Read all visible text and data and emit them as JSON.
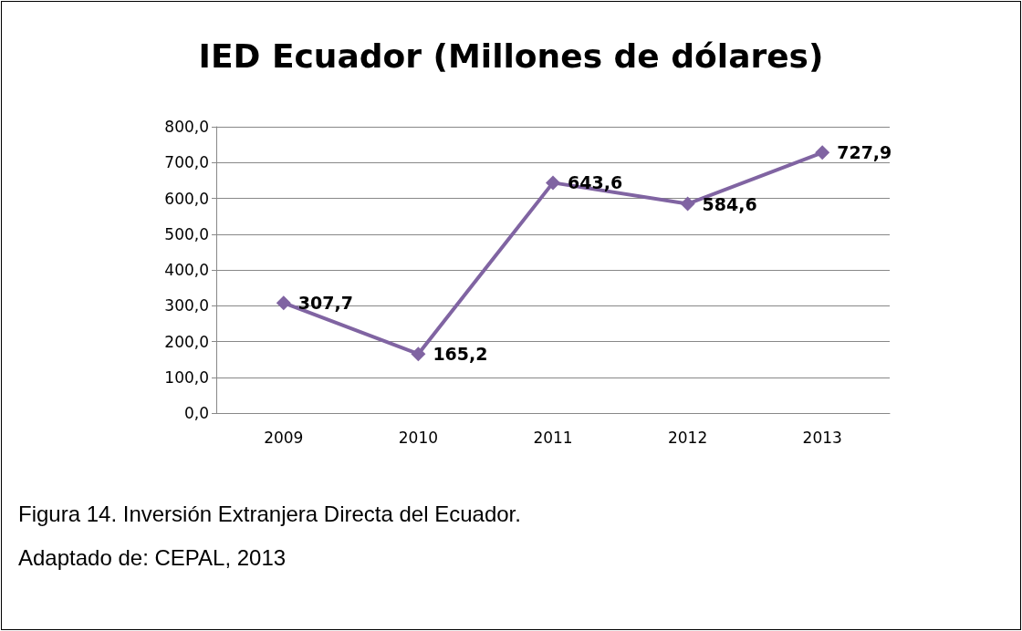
{
  "chart_data": {
    "type": "line",
    "title": "IED Ecuador (Millones de dólares)",
    "categories": [
      "2009",
      "2010",
      "2011",
      "2012",
      "2013"
    ],
    "series": [
      {
        "color": "#8064a2",
        "values": [
          307.7,
          165.2,
          643.6,
          584.6,
          727.9
        ],
        "value_labels": [
          "307,7",
          "165,2",
          "643,6",
          "584,6",
          "727,9"
        ]
      }
    ],
    "ylim": [
      0,
      800
    ],
    "yticks": [
      {
        "value": 0,
        "label": "0,0"
      },
      {
        "value": 100,
        "label": "100,0"
      },
      {
        "value": 200,
        "label": "200,0"
      },
      {
        "value": 300,
        "label": "300,0"
      },
      {
        "value": 400,
        "label": "400,0"
      },
      {
        "value": 500,
        "label": "500,0"
      },
      {
        "value": 600,
        "label": "600,0"
      },
      {
        "value": 700,
        "label": "700,0"
      },
      {
        "value": 800,
        "label": "800,0"
      }
    ],
    "grid": "y",
    "marker": "diamond",
    "line_style": "solid",
    "annotations": [
      "Figura 14. Inversión Extranjera Directa del Ecuador.",
      "Adaptado de: CEPAL, 2013"
    ]
  }
}
